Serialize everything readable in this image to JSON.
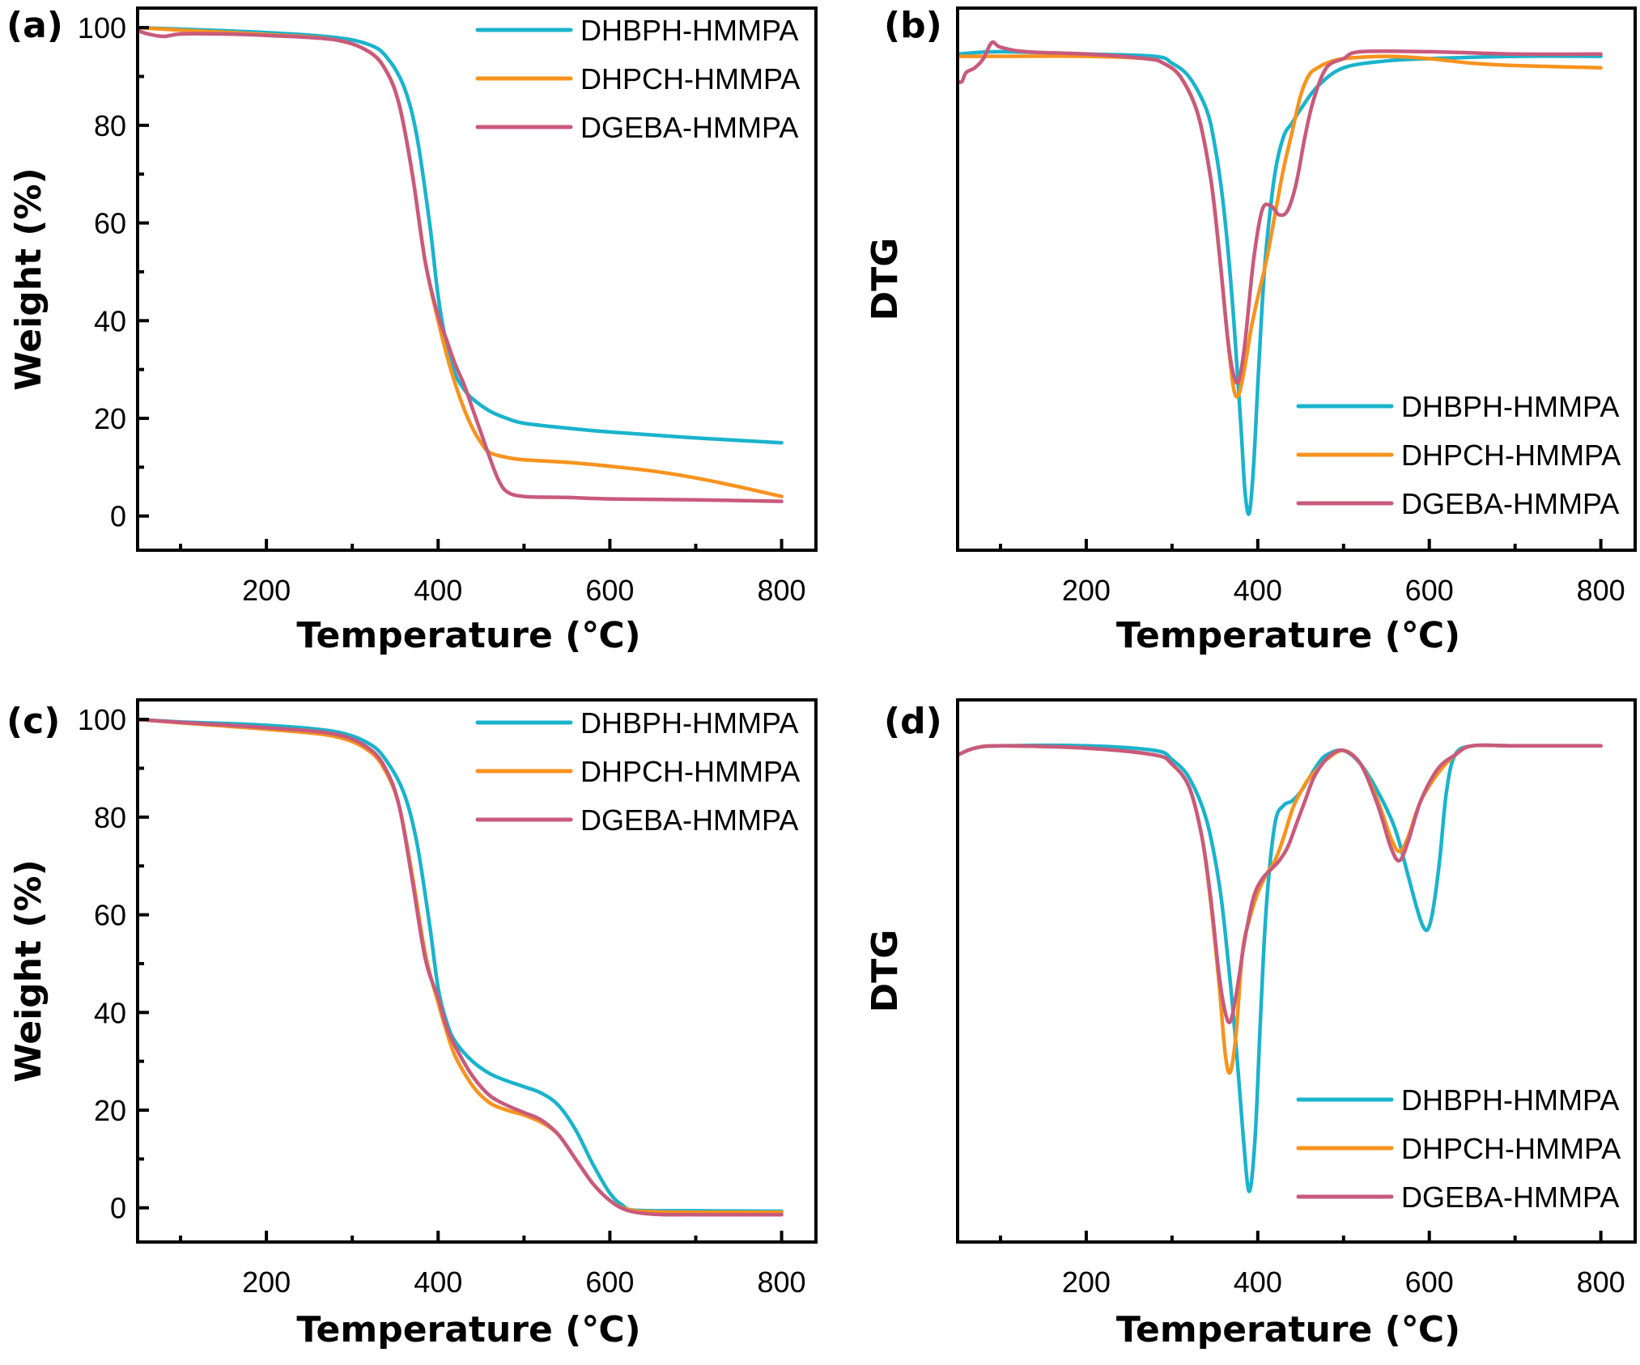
{
  "figure": {
    "panel_labels": [
      "(a)",
      "(b)",
      "(c)",
      "(d)"
    ]
  },
  "chart_data": [
    {
      "id": "a",
      "label": "(a)",
      "type": "line",
      "title": "",
      "xlabel": "Temperature (℃)",
      "ylabel": "Weight (%)",
      "xlim": [
        50,
        840
      ],
      "ylim": [
        -7,
        104
      ],
      "xticks": [
        200,
        400,
        600,
        800
      ],
      "xminor": [
        100,
        300,
        500,
        700
      ],
      "yticks": [
        0,
        20,
        40,
        60,
        80,
        100
      ],
      "yminor": [
        10,
        30,
        50,
        70,
        90
      ],
      "show_yticklabels": true,
      "grid": false,
      "legend": "top-right",
      "series": [
        {
          "name": "DHBPH-HMMPA",
          "color": "#1ab3cc",
          "x": [
            50,
            100,
            200,
            280,
            320,
            340,
            360,
            375,
            390,
            400,
            410,
            420,
            430,
            440,
            460,
            480,
            500,
            550,
            600,
            700,
            800
          ],
          "y": [
            100,
            99.7,
            99,
            98,
            96.5,
            94,
            88,
            78,
            60,
            45,
            35,
            29,
            26,
            24,
            21.5,
            20,
            19,
            18,
            17.2,
            16,
            15
          ]
        },
        {
          "name": "DHPCH-HMMPA",
          "color": "#f7931e",
          "x": [
            50,
            100,
            200,
            280,
            320,
            340,
            355,
            370,
            385,
            400,
            410,
            420,
            430,
            440,
            450,
            460,
            480,
            500,
            550,
            600,
            650,
            700,
            750,
            800
          ],
          "y": [
            100,
            99.5,
            98.6,
            97.5,
            95,
            91,
            84,
            70,
            52,
            40,
            33,
            27,
            22,
            18,
            15,
            13,
            12,
            11.5,
            11,
            10.2,
            9.2,
            7.8,
            6,
            4
          ]
        },
        {
          "name": "DGEBA-HMMPA",
          "color": "#c85a7c",
          "x": [
            50,
            60,
            80,
            100,
            150,
            200,
            280,
            320,
            340,
            355,
            370,
            385,
            400,
            410,
            420,
            430,
            440,
            450,
            460,
            470,
            480,
            500,
            550,
            600,
            700,
            800
          ],
          "y": [
            99.5,
            98.8,
            98.2,
            98.7,
            98.7,
            98.4,
            97.5,
            95,
            91,
            84,
            70,
            52,
            41,
            36,
            31,
            27,
            22,
            17,
            12,
            7.5,
            5,
            4,
            3.8,
            3.5,
            3.3,
            3
          ]
        }
      ]
    },
    {
      "id": "b",
      "label": "(b)",
      "type": "line",
      "title": "",
      "xlabel": "Temperature (℃)",
      "ylabel": "DTG",
      "xlim": [
        50,
        840
      ],
      "ylim": [
        -1.08,
        0.1
      ],
      "xticks": [
        200,
        400,
        600,
        800
      ],
      "xminor": [
        100,
        300,
        500,
        700
      ],
      "yticks": [],
      "yminor": [],
      "show_yticklabels": false,
      "grid": false,
      "legend": "bottom-right",
      "series": [
        {
          "name": "DHBPH-HMMPA",
          "color": "#1ab3cc",
          "x": [
            50,
            100,
            200,
            280,
            300,
            320,
            340,
            350,
            360,
            370,
            380,
            385,
            390,
            395,
            400,
            405,
            410,
            420,
            430,
            440,
            450,
            470,
            500,
            550,
            600,
            700,
            800
          ],
          "y": [
            0,
            0.005,
            0,
            -0.005,
            -0.02,
            -0.05,
            -0.12,
            -0.2,
            -0.33,
            -0.53,
            -0.8,
            -0.95,
            -1.0,
            -0.9,
            -0.72,
            -0.55,
            -0.42,
            -0.26,
            -0.18,
            -0.15,
            -0.12,
            -0.07,
            -0.03,
            -0.015,
            -0.01,
            -0.005,
            -0.005
          ]
        },
        {
          "name": "DHPCH-HMMPA",
          "color": "#f7931e",
          "x": [
            50,
            100,
            200,
            270,
            290,
            310,
            330,
            345,
            355,
            365,
            372,
            378,
            385,
            392,
            400,
            410,
            420,
            430,
            440,
            450,
            460,
            470,
            480,
            500,
            550,
            600,
            650,
            700,
            800
          ],
          "y": [
            -0.005,
            -0.005,
            -0.005,
            -0.01,
            -0.02,
            -0.05,
            -0.13,
            -0.27,
            -0.43,
            -0.62,
            -0.73,
            -0.74,
            -0.68,
            -0.6,
            -0.53,
            -0.45,
            -0.35,
            -0.25,
            -0.17,
            -0.09,
            -0.045,
            -0.03,
            -0.02,
            -0.01,
            -0.005,
            -0.01,
            -0.02,
            -0.025,
            -0.03
          ]
        },
        {
          "name": "DGEBA-HMMPA",
          "color": "#c85a7c",
          "x": [
            50,
            55,
            60,
            70,
            80,
            90,
            100,
            130,
            200,
            270,
            290,
            310,
            330,
            345,
            355,
            365,
            372,
            378,
            385,
            395,
            405,
            415,
            425,
            435,
            445,
            455,
            465,
            480,
            500,
            520,
            600,
            700,
            800
          ],
          "y": [
            -0.06,
            -0.06,
            -0.04,
            -0.03,
            -0.01,
            0.025,
            0.015,
            0.005,
            0,
            -0.01,
            -0.02,
            -0.05,
            -0.13,
            -0.27,
            -0.43,
            -0.62,
            -0.7,
            -0.71,
            -0.63,
            -0.45,
            -0.34,
            -0.33,
            -0.35,
            -0.34,
            -0.28,
            -0.18,
            -0.1,
            -0.03,
            -0.01,
            0.005,
            0.005,
            0,
            0
          ]
        }
      ]
    },
    {
      "id": "c",
      "label": "(c)",
      "type": "line",
      "title": "",
      "xlabel": "Temperature (℃)",
      "ylabel": "Weight (%)",
      "xlim": [
        50,
        840
      ],
      "ylim": [
        -7,
        104
      ],
      "xticks": [
        200,
        400,
        600,
        800
      ],
      "xminor": [
        100,
        300,
        500,
        700
      ],
      "yticks": [
        0,
        20,
        40,
        60,
        80,
        100
      ],
      "yminor": [
        10,
        30,
        50,
        70,
        90
      ],
      "show_yticklabels": true,
      "grid": false,
      "legend": "top-right",
      "series": [
        {
          "name": "DHBPH-HMMPA",
          "color": "#1ab3cc",
          "x": [
            50,
            100,
            200,
            280,
            320,
            340,
            360,
            375,
            390,
            400,
            410,
            420,
            440,
            460,
            480,
            500,
            520,
            540,
            560,
            580,
            600,
            615,
            630,
            700,
            800
          ],
          "y": [
            100,
            99.5,
            98.8,
            97.5,
            95,
            91.5,
            85,
            75,
            58,
            45,
            38,
            34,
            30,
            27.5,
            26,
            24.8,
            23.5,
            21,
            16,
            9,
            3,
            0.5,
            -0.5,
            -0.6,
            -0.7
          ]
        },
        {
          "name": "DHPCH-HMMPA",
          "color": "#f7931e",
          "x": [
            50,
            100,
            200,
            280,
            320,
            340,
            355,
            370,
            385,
            400,
            410,
            420,
            440,
            460,
            480,
            500,
            520,
            540,
            560,
            580,
            600,
            620,
            650,
            700,
            800
          ],
          "y": [
            100,
            99.3,
            98,
            96.5,
            93.5,
            89,
            82,
            68,
            52,
            42,
            36,
            31,
            25,
            21.5,
            20,
            19,
            17.5,
            15,
            10,
            5,
            1.5,
            -0.3,
            -0.8,
            -0.9,
            -0.9
          ]
        },
        {
          "name": "DGEBA-HMMPA",
          "color": "#c85a7c",
          "x": [
            50,
            100,
            200,
            280,
            320,
            340,
            355,
            370,
            385,
            400,
            410,
            420,
            440,
            460,
            480,
            500,
            520,
            540,
            560,
            580,
            600,
            620,
            650,
            700,
            800
          ],
          "y": [
            100,
            99.4,
            98.3,
            97,
            94,
            89.5,
            82,
            67,
            51,
            43,
            37,
            33,
            27,
            23,
            21,
            19.5,
            18,
            15,
            10,
            5,
            1.5,
            -0.5,
            -1.3,
            -1.4,
            -1.4
          ]
        }
      ]
    },
    {
      "id": "d",
      "label": "(d)",
      "type": "line",
      "title": "",
      "xlabel": "Temperature (℃)",
      "ylabel": "DTG",
      "xlim": [
        50,
        840
      ],
      "ylim": [
        -1.08,
        0.1
      ],
      "xticks": [
        200,
        400,
        600,
        800
      ],
      "xminor": [
        100,
        300,
        500,
        700
      ],
      "yticks": [],
      "yminor": [],
      "show_yticklabels": false,
      "grid": false,
      "legend": "bottom-right",
      "series": [
        {
          "name": "DHBPH-HMMPA",
          "color": "#1ab3cc",
          "x": [
            50,
            70,
            100,
            200,
            280,
            300,
            320,
            340,
            355,
            365,
            375,
            383,
            390,
            397,
            403,
            410,
            420,
            430,
            440,
            450,
            460,
            470,
            480,
            500,
            520,
            540,
            560,
            575,
            585,
            592,
            598,
            604,
            612,
            620,
            630,
            650,
            700,
            800
          ],
          "y": [
            -0.02,
            -0.005,
            0,
            0,
            -0.01,
            -0.03,
            -0.07,
            -0.16,
            -0.3,
            -0.46,
            -0.66,
            -0.85,
            -0.97,
            -0.85,
            -0.6,
            -0.35,
            -0.17,
            -0.13,
            -0.12,
            -0.1,
            -0.07,
            -0.04,
            -0.02,
            -0.01,
            -0.04,
            -0.1,
            -0.18,
            -0.28,
            -0.35,
            -0.39,
            -0.4,
            -0.36,
            -0.25,
            -0.1,
            -0.02,
            0,
            0,
            0
          ]
        },
        {
          "name": "DHPCH-HMMPA",
          "color": "#f7931e",
          "x": [
            50,
            70,
            100,
            200,
            280,
            300,
            320,
            335,
            345,
            355,
            362,
            368,
            375,
            382,
            390,
            400,
            410,
            420,
            430,
            440,
            450,
            460,
            470,
            480,
            500,
            520,
            540,
            555,
            565,
            575,
            590,
            610,
            630,
            650,
            700,
            800
          ],
          "y": [
            -0.02,
            -0.005,
            0,
            -0.005,
            -0.02,
            -0.04,
            -0.09,
            -0.2,
            -0.34,
            -0.52,
            -0.67,
            -0.71,
            -0.62,
            -0.45,
            -0.38,
            -0.32,
            -0.28,
            -0.25,
            -0.2,
            -0.14,
            -0.1,
            -0.07,
            -0.05,
            -0.03,
            -0.01,
            -0.04,
            -0.12,
            -0.2,
            -0.23,
            -0.2,
            -0.12,
            -0.06,
            -0.02,
            0,
            0,
            0
          ]
        },
        {
          "name": "DGEBA-HMMPA",
          "color": "#c85a7c",
          "x": [
            50,
            70,
            100,
            200,
            280,
            300,
            320,
            335,
            345,
            355,
            362,
            368,
            375,
            385,
            395,
            405,
            415,
            425,
            435,
            445,
            455,
            465,
            475,
            485,
            500,
            520,
            540,
            555,
            565,
            575,
            590,
            610,
            630,
            650,
            700,
            800
          ],
          "y": [
            -0.02,
            -0.005,
            0,
            -0.005,
            -0.02,
            -0.04,
            -0.09,
            -0.2,
            -0.33,
            -0.5,
            -0.58,
            -0.6,
            -0.54,
            -0.42,
            -0.33,
            -0.29,
            -0.27,
            -0.25,
            -0.22,
            -0.17,
            -0.12,
            -0.07,
            -0.04,
            -0.02,
            -0.01,
            -0.04,
            -0.13,
            -0.22,
            -0.25,
            -0.21,
            -0.12,
            -0.05,
            -0.02,
            0,
            0,
            0
          ]
        }
      ]
    }
  ]
}
